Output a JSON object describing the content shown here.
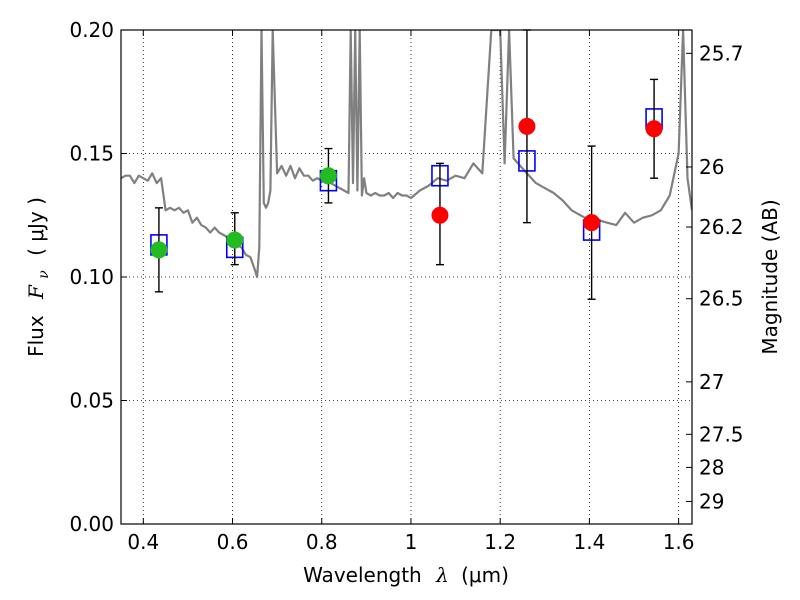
{
  "chart_data": {
    "type": "scatter",
    "xlabel": "Wavelength",
    "xlabel_symbol": "λ",
    "xlabel_unit": "(μm)",
    "ylabel_prefix": "Flux",
    "ylabel_symbol": "F",
    "ylabel_subscript": "ν",
    "ylabel_unit": "( μJy )",
    "y2label": "Magnitude (AB)",
    "xlim": [
      0.35,
      1.63
    ],
    "ylim": [
      0.0,
      0.2
    ],
    "grid": true,
    "x_ticks": [
      0.4,
      0.6,
      0.8,
      1.0,
      1.2,
      1.4,
      1.6
    ],
    "x_tick_labels": [
      "0.4",
      "0.6",
      "0.8",
      "1",
      "1.2",
      "1.4",
      "1.6"
    ],
    "y_ticks": [
      0.0,
      0.05,
      0.1,
      0.15,
      0.2
    ],
    "y_tick_labels": [
      "0.00",
      "0.05",
      "0.10",
      "0.15",
      "0.20"
    ],
    "y2_ticks": [
      25.7,
      26,
      26.2,
      26.5,
      27,
      27.5,
      28,
      29
    ],
    "y2_tick_labels": [
      "25.7",
      "26",
      "26.2",
      "26.5",
      "27",
      "27.5",
      "28",
      "29"
    ],
    "series": [
      {
        "color": "#808080",
        "kind": "line",
        "x": [
          0.35,
          0.36,
          0.37,
          0.38,
          0.39,
          0.4,
          0.41,
          0.42,
          0.43,
          0.44,
          0.45,
          0.46,
          0.47,
          0.48,
          0.49,
          0.5,
          0.51,
          0.52,
          0.53,
          0.54,
          0.55,
          0.56,
          0.57,
          0.58,
          0.59,
          0.6,
          0.61,
          0.62,
          0.63,
          0.64,
          0.65,
          0.655,
          0.66,
          0.665,
          0.67,
          0.675,
          0.68,
          0.685,
          0.69,
          0.7,
          0.71,
          0.72,
          0.73,
          0.74,
          0.75,
          0.76,
          0.77,
          0.78,
          0.79,
          0.8,
          0.81,
          0.82,
          0.83,
          0.84,
          0.85,
          0.86,
          0.865,
          0.87,
          0.875,
          0.88,
          0.885,
          0.89,
          0.895,
          0.9,
          0.91,
          0.92,
          0.93,
          0.94,
          0.95,
          0.96,
          0.97,
          0.98,
          0.99,
          1.0,
          1.02,
          1.04,
          1.06,
          1.08,
          1.1,
          1.12,
          1.14,
          1.16,
          1.18,
          1.19,
          1.2,
          1.21,
          1.22,
          1.23,
          1.24,
          1.26,
          1.28,
          1.3,
          1.32,
          1.34,
          1.36,
          1.38,
          1.4,
          1.42,
          1.44,
          1.46,
          1.48,
          1.5,
          1.52,
          1.54,
          1.56,
          1.58,
          1.6,
          1.61,
          1.62,
          1.63
        ],
        "y": [
          0.14,
          0.141,
          0.141,
          0.138,
          0.141,
          0.14,
          0.139,
          0.142,
          0.138,
          0.14,
          0.127,
          0.128,
          0.127,
          0.128,
          0.126,
          0.127,
          0.122,
          0.124,
          0.121,
          0.12,
          0.118,
          0.12,
          0.118,
          0.117,
          0.116,
          0.116,
          0.113,
          0.112,
          0.109,
          0.108,
          0.103,
          0.1,
          0.112,
          0.2,
          0.13,
          0.128,
          0.13,
          0.135,
          0.2,
          0.142,
          0.145,
          0.141,
          0.145,
          0.14,
          0.144,
          0.141,
          0.141,
          0.139,
          0.14,
          0.139,
          0.138,
          0.138,
          0.137,
          0.136,
          0.135,
          0.134,
          0.2,
          0.138,
          0.2,
          0.135,
          0.2,
          0.133,
          0.14,
          0.134,
          0.133,
          0.134,
          0.133,
          0.133,
          0.134,
          0.132,
          0.134,
          0.133,
          0.133,
          0.132,
          0.135,
          0.137,
          0.14,
          0.139,
          0.141,
          0.14,
          0.146,
          0.142,
          0.2,
          0.2,
          0.2,
          0.146,
          0.2,
          0.148,
          0.146,
          0.142,
          0.138,
          0.136,
          0.134,
          0.131,
          0.127,
          0.125,
          0.123,
          0.123,
          0.122,
          0.121,
          0.126,
          0.122,
          0.124,
          0.125,
          0.127,
          0.133,
          0.15,
          0.2,
          0.14,
          0.127
        ]
      },
      {
        "color": "#0000ff",
        "kind": "open-square",
        "x": [
          0.435,
          0.605,
          0.815,
          1.065,
          1.26,
          1.405,
          1.545
        ],
        "y": [
          0.113,
          0.112,
          0.139,
          0.141,
          0.147,
          0.119,
          0.164
        ]
      },
      {
        "color": "#22bb22",
        "kind": "filled-circle",
        "x": [
          0.435,
          0.605,
          0.815
        ],
        "y": [
          0.111,
          0.115,
          0.141
        ],
        "yerr_low": [
          0.094,
          0.105,
          0.13
        ],
        "yerr_high": [
          0.128,
          0.126,
          0.152
        ]
      },
      {
        "color": "#ff0000",
        "kind": "filled-circle",
        "x": [
          1.065,
          1.26,
          1.405,
          1.545
        ],
        "y": [
          0.125,
          0.161,
          0.122,
          0.16
        ],
        "yerr_low": [
          0.105,
          0.122,
          0.091,
          0.14
        ],
        "yerr_high": [
          0.146,
          0.2,
          0.153,
          0.18
        ]
      }
    ]
  }
}
